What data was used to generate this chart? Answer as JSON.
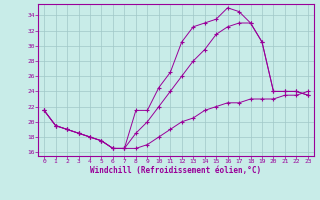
{
  "xlabel": "Windchill (Refroidissement éolien,°C)",
  "bg_color": "#c8ece8",
  "grid_color": "#a0c8c8",
  "line_color": "#990099",
  "xlim_min": -0.5,
  "xlim_max": 23.5,
  "ylim_min": 15.5,
  "ylim_max": 35.5,
  "xticks": [
    0,
    1,
    2,
    3,
    4,
    5,
    6,
    7,
    8,
    9,
    10,
    11,
    12,
    13,
    14,
    15,
    16,
    17,
    18,
    19,
    20,
    21,
    22,
    23
  ],
  "yticks": [
    16,
    18,
    20,
    22,
    24,
    26,
    28,
    30,
    32,
    34
  ],
  "line1_x": [
    0,
    1,
    2,
    3,
    4,
    5,
    6,
    7,
    8,
    9,
    10,
    11,
    12,
    13,
    14,
    15,
    16,
    17,
    18,
    19,
    20,
    21,
    22,
    23
  ],
  "line1_y": [
    21.5,
    19.5,
    19.0,
    18.5,
    18.0,
    17.5,
    16.5,
    16.5,
    21.5,
    21.5,
    24.5,
    26.5,
    30.5,
    32.5,
    33.0,
    33.5,
    35.0,
    34.5,
    33.0,
    30.5,
    24.0,
    24.0,
    24.0,
    23.5
  ],
  "line2_x": [
    0,
    1,
    2,
    3,
    4,
    5,
    6,
    7,
    8,
    9,
    10,
    11,
    12,
    13,
    14,
    15,
    16,
    17,
    18,
    19,
    20,
    21,
    22,
    23
  ],
  "line2_y": [
    21.5,
    19.5,
    19.0,
    18.5,
    18.0,
    17.5,
    16.5,
    16.5,
    18.5,
    20.0,
    22.0,
    24.0,
    26.0,
    28.0,
    29.5,
    31.5,
    32.5,
    33.0,
    33.0,
    30.5,
    24.0,
    24.0,
    24.0,
    23.5
  ],
  "line3_x": [
    0,
    1,
    2,
    3,
    4,
    5,
    6,
    7,
    8,
    9,
    10,
    11,
    12,
    13,
    14,
    15,
    16,
    17,
    18,
    19,
    20,
    21,
    22,
    23
  ],
  "line3_y": [
    21.5,
    19.5,
    19.0,
    18.5,
    18.0,
    17.5,
    16.5,
    16.5,
    16.5,
    17.0,
    18.0,
    19.0,
    20.0,
    20.5,
    21.5,
    22.0,
    22.5,
    22.5,
    23.0,
    23.0,
    23.0,
    23.5,
    23.5,
    24.0
  ]
}
